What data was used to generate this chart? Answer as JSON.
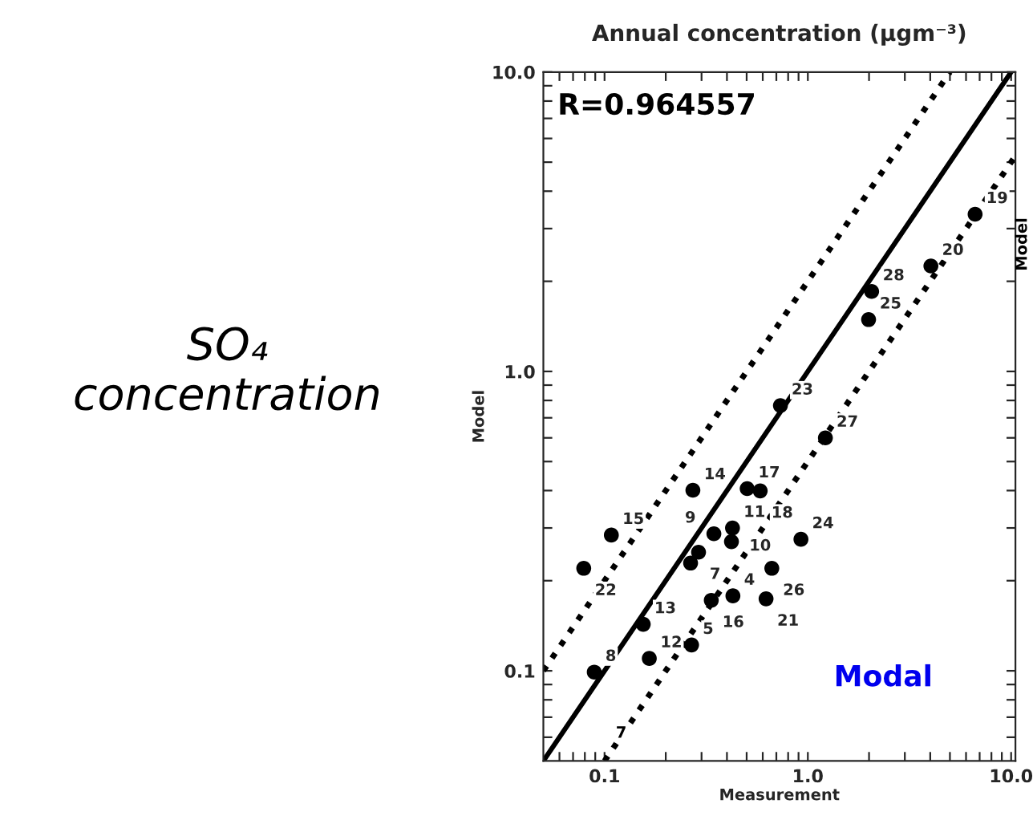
{
  "chart_data": {
    "type": "scatter",
    "title": "Annual concentration (μgm⁻³)",
    "xlabel": "Measurement",
    "ylabel": "Model",
    "log": "xy",
    "grid": false,
    "xlim": [
      0.05,
      10.5
    ],
    "ylim": [
      0.05,
      10
    ],
    "xticks": [
      {
        "value": 0.06,
        "label": null
      },
      {
        "value": 0.07,
        "label": null
      },
      {
        "value": 0.08,
        "label": null
      },
      {
        "value": 0.09,
        "label": null
      },
      {
        "value": 0.1,
        "label": "0.1"
      },
      {
        "value": 0.2,
        "label": null
      },
      {
        "value": 0.3,
        "label": null
      },
      {
        "value": 0.4,
        "label": null
      },
      {
        "value": 0.5,
        "label": null
      },
      {
        "value": 0.6,
        "label": null
      },
      {
        "value": 0.7,
        "label": null
      },
      {
        "value": 0.8,
        "label": null
      },
      {
        "value": 0.9,
        "label": null
      },
      {
        "value": 1,
        "label": "1.0"
      },
      {
        "value": 2,
        "label": null
      },
      {
        "value": 3,
        "label": null
      },
      {
        "value": 4,
        "label": null
      },
      {
        "value": 5,
        "label": null
      },
      {
        "value": 6,
        "label": null
      },
      {
        "value": 7,
        "label": null
      },
      {
        "value": 8,
        "label": null
      },
      {
        "value": 9,
        "label": null
      },
      {
        "value": 10,
        "label": "10.0"
      }
    ],
    "yticks": [
      {
        "value": 0.06,
        "label": null
      },
      {
        "value": 0.07,
        "label": null
      },
      {
        "value": 0.08,
        "label": null
      },
      {
        "value": 0.09,
        "label": null
      },
      {
        "value": 0.1,
        "label": "0.1"
      },
      {
        "value": 0.2,
        "label": null
      },
      {
        "value": 0.3,
        "label": null
      },
      {
        "value": 0.4,
        "label": null
      },
      {
        "value": 0.5,
        "label": null
      },
      {
        "value": 0.6,
        "label": null
      },
      {
        "value": 0.7,
        "label": null
      },
      {
        "value": 0.8,
        "label": null
      },
      {
        "value": 0.9,
        "label": null
      },
      {
        "value": 1,
        "label": "1.0"
      },
      {
        "value": 2,
        "label": null
      },
      {
        "value": 3,
        "label": null
      },
      {
        "value": 4,
        "label": null
      },
      {
        "value": 5,
        "label": null
      },
      {
        "value": 6,
        "label": null
      },
      {
        "value": 7,
        "label": null
      },
      {
        "value": 8,
        "label": null
      },
      {
        "value": 9,
        "label": null
      },
      {
        "value": 10,
        "label": "10.0"
      }
    ],
    "series": [
      {
        "type": "line",
        "line_style": "solid",
        "marker": "none",
        "color": "#000000",
        "x": [
          0.05,
          10
        ],
        "values": [
          0.05,
          10
        ]
      },
      {
        "type": "line",
        "line_style": "dotted",
        "marker": "none",
        "color": "#000000",
        "x": [
          0.05,
          5
        ],
        "values": [
          0.1,
          10
        ]
      },
      {
        "type": "line",
        "line_style": "dotted",
        "marker": "none",
        "color": "#000000",
        "x": [
          0.1,
          10.5
        ],
        "values": [
          0.05,
          5.25
        ]
      },
      {
        "marker": "circle",
        "color": "#000000",
        "x": [
          0.089,
          0.166,
          0.155,
          0.268,
          0.335,
          0.428,
          0.623,
          0.665,
          0.925,
          0.079,
          0.108,
          0.272,
          0.345,
          0.426,
          0.421,
          0.29,
          0.265,
          0.503,
          0.583,
          0.733,
          1.22,
          1.99,
          2.06,
          4.03,
          6.65
        ],
        "values": [
          0.099,
          0.11,
          0.143,
          0.122,
          0.172,
          0.178,
          0.174,
          0.22,
          0.275,
          0.22,
          0.284,
          0.401,
          0.287,
          0.3,
          0.27,
          0.249,
          0.229,
          0.406,
          0.399,
          0.769,
          0.6,
          1.49,
          1.85,
          2.25,
          3.35
        ]
      }
    ],
    "annotations": [
      "R=0.964557",
      "Modal",
      "SO₄\nconcentration",
      "Model",
      "7",
      {
        "text": "8",
        "x": 0.089,
        "y": 0.099
      },
      {
        "text": "12",
        "x": 0.166,
        "y": 0.11
      },
      {
        "text": "13",
        "x": 0.155,
        "y": 0.143
      },
      {
        "text": "5",
        "x": 0.268,
        "y": 0.122
      },
      {
        "text": "16",
        "x": 0.335,
        "y": 0.172
      },
      {
        "text": "4",
        "x": 0.428,
        "y": 0.178
      },
      {
        "text": "21",
        "x": 0.623,
        "y": 0.174
      },
      {
        "text": "26",
        "x": 0.665,
        "y": 0.22
      },
      {
        "text": "24",
        "x": 0.925,
        "y": 0.275
      },
      {
        "text": "22",
        "x": 0.079,
        "y": 0.22
      },
      {
        "text": "15",
        "x": 0.108,
        "y": 0.284
      },
      {
        "text": "14",
        "x": 0.272,
        "y": 0.401
      },
      {
        "text": "9",
        "x": 0.345,
        "y": 0.287
      },
      {
        "text": "11",
        "x": 0.426,
        "y": 0.3
      },
      {
        "text": "10",
        "x": 0.421,
        "y": 0.27
      },
      {
        "text": "7",
        "x": 0.29,
        "y": 0.249
      },
      {
        "text": "17",
        "x": 0.503,
        "y": 0.406
      },
      {
        "text": "18",
        "x": 0.583,
        "y": 0.399
      },
      {
        "text": "23",
        "x": 0.733,
        "y": 0.769
      },
      {
        "text": "27",
        "x": 1.22,
        "y": 0.6
      },
      {
        "text": "25",
        "x": 1.99,
        "y": 1.49
      },
      {
        "text": "28",
        "x": 2.06,
        "y": 1.85
      },
      {
        "text": "20",
        "x": 4.03,
        "y": 2.25
      },
      {
        "text": "19",
        "x": 6.65,
        "y": 3.35
      }
    ]
  }
}
